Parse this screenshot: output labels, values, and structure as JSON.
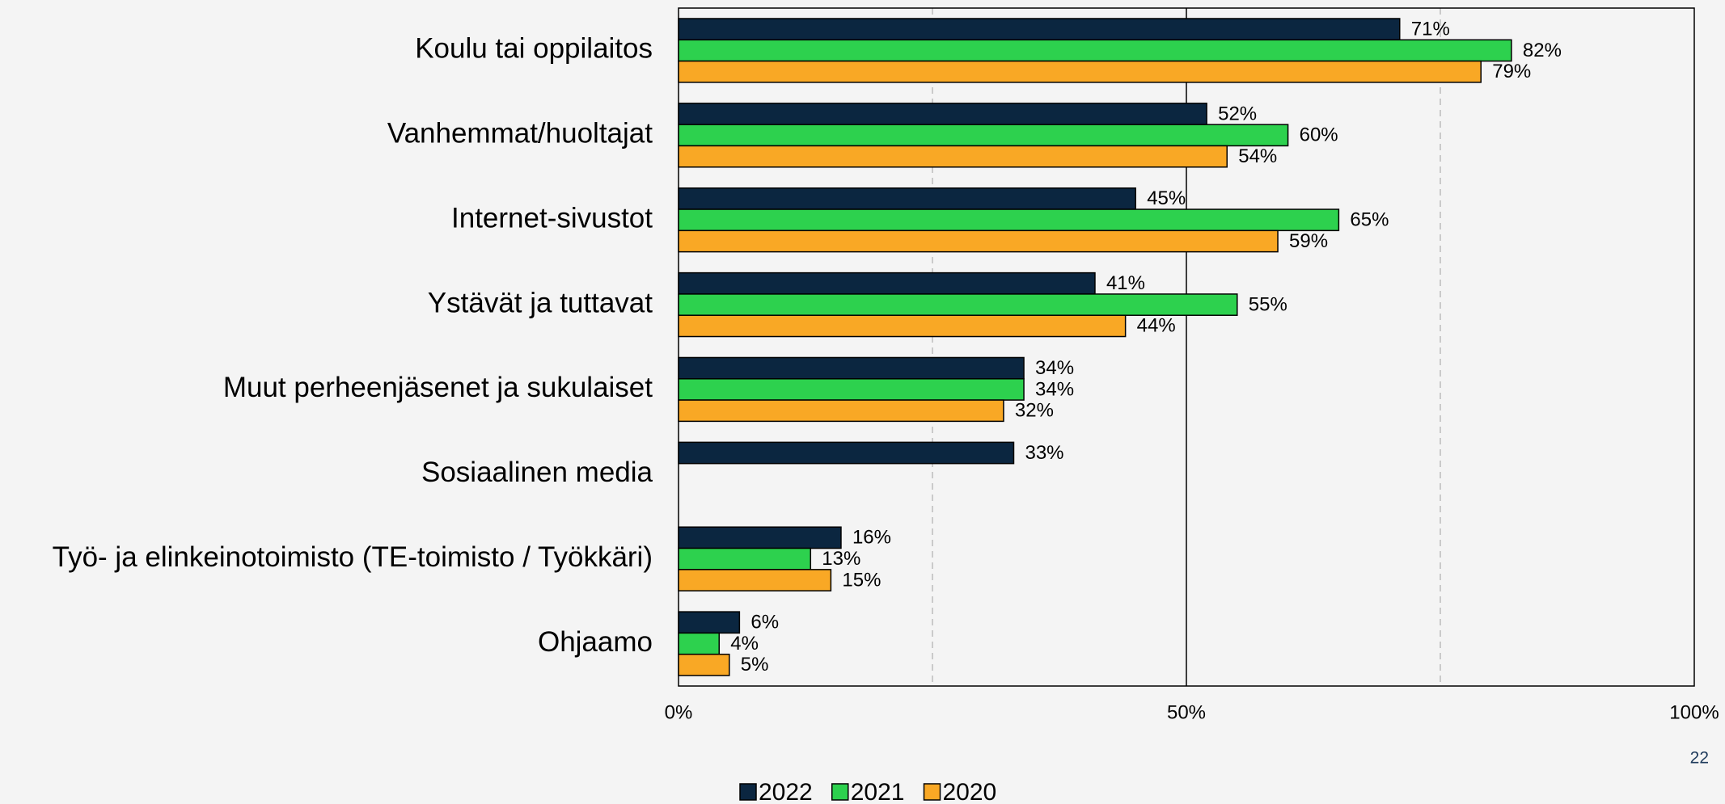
{
  "chart_data": {
    "type": "bar",
    "orientation": "horizontal",
    "categories": [
      "Koulu tai oppilaitos",
      "Vanhemmat/huoltajat",
      "Internet-sivustot",
      "Ystävät ja tuttavat",
      "Muut perheenjäsenet ja sukulaiset",
      "Sosiaalinen media",
      "Työ- ja elinkeinotoimisto (TE-toimisto / Työkkäri)",
      "Ohjaamo"
    ],
    "series": [
      {
        "name": "2022",
        "color": "#0b2640",
        "values": [
          71,
          52,
          45,
          41,
          34,
          33,
          16,
          6
        ],
        "value_labels": [
          "71%",
          "52%",
          "45%",
          "41%",
          "34%",
          "33%",
          "16%",
          "6%"
        ]
      },
      {
        "name": "2021",
        "color": "#2dd14e",
        "values": [
          82,
          60,
          65,
          55,
          34,
          null,
          13,
          4
        ],
        "value_labels": [
          "82%",
          "60%",
          "65%",
          "55%",
          "34%",
          null,
          "13%",
          "4%"
        ]
      },
      {
        "name": "2020",
        "color": "#f9a825",
        "values": [
          79,
          54,
          59,
          44,
          32,
          null,
          15,
          5
        ],
        "value_labels": [
          "79%",
          "54%",
          "59%",
          "44%",
          "32%",
          null,
          "15%",
          "5%"
        ]
      }
    ],
    "xlim": [
      0,
      100
    ],
    "xticks": [
      {
        "value": 0,
        "label": "0%"
      },
      {
        "value": 50,
        "label": "50%"
      },
      {
        "value": 100,
        "label": "100%"
      }
    ],
    "xminor_grid": [
      25,
      75
    ],
    "grid": true,
    "legend": "bottom"
  },
  "page_number": "22"
}
